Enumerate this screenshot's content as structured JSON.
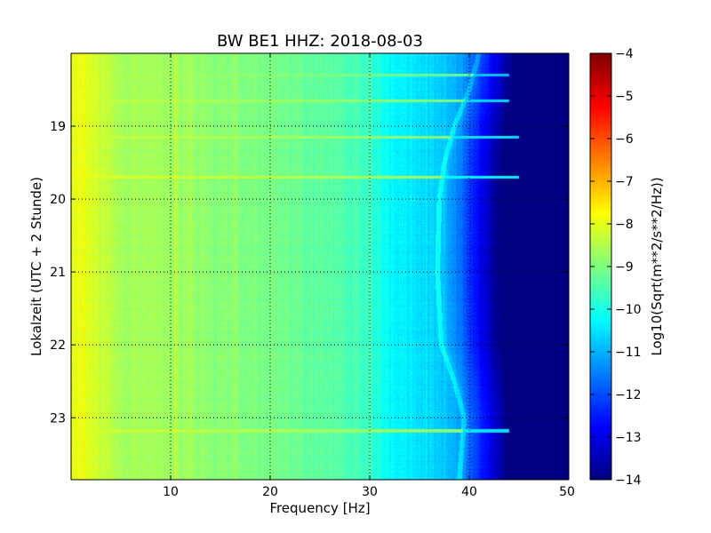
{
  "chart_data": {
    "type": "heatmap",
    "title": "BW BE1 HHZ: 2018-08-03",
    "xlabel": "Frequency [Hz]",
    "ylabel": "Lokalzeit (UTC + 2 Stunde)",
    "xlim": [
      0,
      50
    ],
    "ylim": [
      18.0,
      23.85
    ],
    "y_inverted": true,
    "x_ticks": [
      10,
      20,
      30,
      40,
      50
    ],
    "x_tick_labels": [
      "10",
      "20",
      "30",
      "40",
      "50"
    ],
    "y_ticks": [
      19,
      20,
      21,
      22,
      23
    ],
    "y_tick_labels": [
      "19",
      "20",
      "21",
      "22",
      "23"
    ],
    "grid": true,
    "colormap": "jet",
    "colorbar": {
      "label": "Log10(Sqrt(m**2/s**2/Hz))",
      "range": [
        -14,
        -4
      ],
      "ticks": [
        -4,
        -5,
        -6,
        -7,
        -8,
        -9,
        -10,
        -11,
        -12,
        -13,
        -14
      ],
      "tick_labels": [
        "−4",
        "−5",
        "−6",
        "−7",
        "−8",
        "−9",
        "−10",
        "−11",
        "−12",
        "−13",
        "−14"
      ]
    },
    "spectrum_profile": [
      {
        "freq": 0,
        "value": -8.0
      },
      {
        "freq": 2,
        "value": -8.1
      },
      {
        "freq": 5,
        "value": -8.6
      },
      {
        "freq": 10,
        "value": -8.7
      },
      {
        "freq": 15,
        "value": -8.9
      },
      {
        "freq": 20,
        "value": -9.1
      },
      {
        "freq": 25,
        "value": -9.3
      },
      {
        "freq": 28,
        "value": -9.5
      },
      {
        "freq": 30,
        "value": -9.8
      },
      {
        "freq": 32,
        "value": -10.2
      },
      {
        "freq": 34,
        "value": -10.4
      },
      {
        "freq": 36,
        "value": -10.6
      },
      {
        "freq": 38,
        "value": -10.9
      },
      {
        "freq": 40,
        "value": -11.5
      },
      {
        "freq": 42,
        "value": -12.3
      },
      {
        "freq": 44,
        "value": -13.0
      },
      {
        "freq": 46,
        "value": -13.6
      },
      {
        "freq": 50,
        "value": -13.9
      }
    ],
    "cutoff_trace": [
      {
        "time": 18.0,
        "freq": 41.0
      },
      {
        "time": 18.5,
        "freq": 40.0
      },
      {
        "time": 19.0,
        "freq": 38.5
      },
      {
        "time": 19.5,
        "freq": 37.5
      },
      {
        "time": 20.0,
        "freq": 37.0
      },
      {
        "time": 21.0,
        "freq": 36.8
      },
      {
        "time": 22.0,
        "freq": 37.2
      },
      {
        "time": 22.5,
        "freq": 38.5
      },
      {
        "time": 23.0,
        "freq": 39.5
      },
      {
        "time": 23.85,
        "freq": 39.0
      }
    ],
    "horizontal_bands": [
      {
        "time": 18.3,
        "freq_max": 44,
        "value": -8.5
      },
      {
        "time": 18.65,
        "freq_max": 44,
        "value": -8.3
      },
      {
        "time": 19.15,
        "freq_max": 45,
        "value": -8.2
      },
      {
        "time": 19.7,
        "freq_max": 45,
        "value": -8.0
      },
      {
        "time": 23.18,
        "freq_max": 44,
        "value": -8.2
      }
    ],
    "vertical_lines": [
      {
        "freq": 1.2,
        "value": -7.7
      },
      {
        "freq": 10.5,
        "value": -8.3
      },
      {
        "freq": 12.0,
        "value": -8.5
      },
      {
        "freq": 16.5,
        "value": -8.7
      },
      {
        "freq": 30.0,
        "value": -9.0
      }
    ]
  }
}
